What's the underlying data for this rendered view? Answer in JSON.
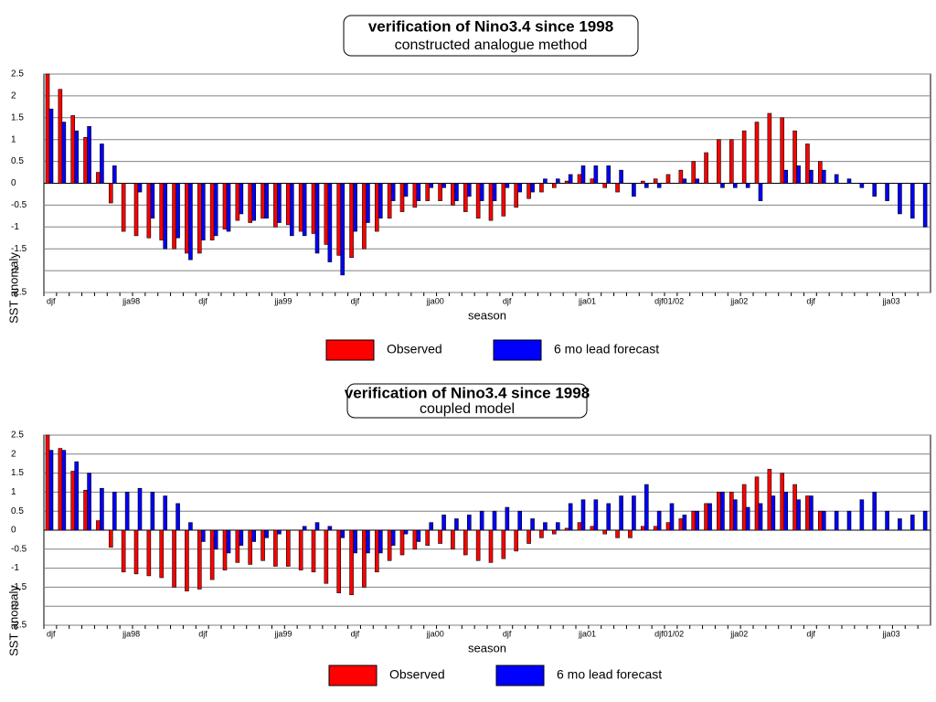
{
  "chart_data": [
    {
      "type": "bar",
      "title": "verification of Nino3.4 since 1998",
      "subtitle": "constructed analogue method",
      "x_label": "season",
      "y_label": "SST anomaly",
      "categories": [
        "djf",
        null,
        null,
        null,
        null,
        null,
        "jja98",
        null,
        null,
        null,
        null,
        null,
        "djf",
        null,
        null,
        null,
        null,
        null,
        "jja99",
        null,
        null,
        null,
        null,
        null,
        "djf",
        null,
        null,
        null,
        null,
        null,
        "jja00",
        null,
        null,
        null,
        null,
        null,
        "djf",
        null,
        null,
        null,
        null,
        null,
        "jja01",
        null,
        null,
        null,
        null,
        null,
        "djf01/02",
        null,
        null,
        null,
        null,
        null,
        "jja02",
        null,
        null,
        null,
        null,
        null,
        "djf",
        null,
        null,
        null,
        null,
        null,
        "jja03",
        null,
        null,
        null
      ],
      "series": [
        {
          "name": "Observed",
          "color": "#ff0000",
          "values": [
            2.5,
            2.15,
            1.55,
            1.05,
            0.25,
            -0.45,
            -1.1,
            -1.2,
            -1.25,
            -1.3,
            -1.5,
            -1.6,
            -1.6,
            -1.3,
            -1.05,
            -0.85,
            -0.9,
            -0.8,
            -1.0,
            -0.95,
            -1.1,
            -1.15,
            -1.4,
            -1.65,
            -1.7,
            -1.5,
            -1.1,
            -0.8,
            -0.65,
            -0.55,
            -0.4,
            -0.4,
            -0.5,
            -0.65,
            -0.8,
            -0.85,
            -0.75,
            -0.55,
            -0.35,
            -0.2,
            -0.1,
            0.05,
            0.2,
            0.1,
            -0.1,
            -0.2,
            0,
            0.05,
            0.1,
            0.2,
            0.3,
            0.5,
            0.7,
            1.0,
            1.0,
            1.2,
            1.4,
            1.6,
            1.5,
            1.2,
            0.9,
            0.5,
            null,
            null,
            null,
            null,
            null,
            null,
            null,
            null
          ]
        },
        {
          "name": "6 mo lead forecast",
          "color": "#0000ff",
          "values": [
            1.7,
            1.4,
            1.2,
            1.3,
            0.9,
            0.4,
            0,
            -0.2,
            -0.8,
            -1.5,
            -1.25,
            -1.75,
            -1.3,
            -1.2,
            -1.1,
            -0.7,
            -0.85,
            -0.8,
            -0.9,
            -1.2,
            -1.2,
            -1.6,
            -1.8,
            -2.1,
            -1.1,
            -0.9,
            -0.8,
            -0.4,
            -0.3,
            -0.4,
            -0.1,
            -0.1,
            -0.4,
            -0.3,
            -0.4,
            -0.4,
            -0.1,
            -0.2,
            -0.2,
            0.1,
            0.1,
            0.2,
            0.4,
            0.4,
            0.4,
            0.3,
            -0.3,
            -0.1,
            -0.1,
            0,
            0.1,
            0.1,
            0,
            -0.1,
            -0.1,
            -0.1,
            -0.4,
            0,
            0.3,
            0.4,
            0.3,
            0.3,
            0.2,
            0.1,
            -0.1,
            -0.3,
            -0.4,
            -0.7,
            -0.8,
            -1.0
          ]
        }
      ],
      "ylim": [
        -2.5,
        2.5
      ],
      "yticks": [
        2.5,
        2,
        1.5,
        1,
        0.5,
        0,
        -0.5,
        -1,
        -1.5,
        -2,
        -2.5
      ],
      "grid": true
    },
    {
      "type": "bar",
      "title": "verification of Nino3.4 since 1998",
      "subtitle": "coupled model",
      "x_label": "season",
      "y_label": "SST anomaly",
      "categories": [
        "djf",
        null,
        null,
        null,
        null,
        null,
        "jja98",
        null,
        null,
        null,
        null,
        null,
        "djf",
        null,
        null,
        null,
        null,
        null,
        "jja99",
        null,
        null,
        null,
        null,
        null,
        "djf",
        null,
        null,
        null,
        null,
        null,
        "jja00",
        null,
        null,
        null,
        null,
        null,
        "djf",
        null,
        null,
        null,
        null,
        null,
        "jja01",
        null,
        null,
        null,
        null,
        null,
        "djf01/02",
        null,
        null,
        null,
        null,
        null,
        "jja02",
        null,
        null,
        null,
        null,
        null,
        "djf",
        null,
        null,
        null,
        null,
        null,
        "jja03",
        null,
        null,
        null
      ],
      "series": [
        {
          "name": "Observed",
          "color": "#ff0000",
          "values": [
            2.5,
            2.15,
            1.55,
            1.05,
            0.25,
            -0.45,
            -1.1,
            -1.15,
            -1.2,
            -1.25,
            -1.5,
            -1.6,
            -1.55,
            -1.3,
            -1.05,
            -0.85,
            -0.9,
            -0.8,
            -0.95,
            -0.95,
            -1.05,
            -1.1,
            -1.4,
            -1.65,
            -1.7,
            -1.5,
            -1.1,
            -0.8,
            -0.65,
            -0.5,
            -0.4,
            -0.35,
            -0.5,
            -0.65,
            -0.8,
            -0.85,
            -0.75,
            -0.55,
            -0.35,
            -0.2,
            -0.1,
            0.05,
            0.2,
            0.1,
            -0.1,
            -0.2,
            -0.2,
            0.1,
            0.1,
            0.2,
            0.3,
            0.5,
            0.7,
            1.0,
            1.0,
            1.2,
            1.4,
            1.6,
            1.5,
            1.2,
            0.9,
            0.5,
            null,
            null,
            null,
            null,
            null,
            null,
            null,
            null
          ]
        },
        {
          "name": "6 mo lead forecast",
          "color": "#0000ff",
          "values": [
            2.1,
            2.1,
            1.8,
            1.5,
            1.1,
            1.0,
            1.0,
            1.1,
            1.0,
            0.9,
            0.7,
            0.2,
            -0.3,
            -0.5,
            -0.6,
            -0.4,
            -0.3,
            -0.2,
            -0.1,
            0,
            0.1,
            0.2,
            0.1,
            -0.2,
            -0.6,
            -0.6,
            -0.6,
            -0.4,
            -0.1,
            -0.3,
            0.2,
            0.4,
            0.3,
            0.4,
            0.5,
            0.5,
            0.6,
            0.5,
            0.3,
            0.2,
            0.2,
            0.7,
            0.8,
            0.8,
            0.7,
            0.9,
            0.9,
            1.2,
            0.5,
            0.7,
            0.4,
            0.5,
            0.7,
            1.0,
            0.8,
            0.6,
            0.7,
            0.9,
            1.0,
            0.8,
            0.9,
            0.5,
            0.5,
            0.5,
            0.8,
            1.0,
            0.5,
            0.3,
            0.4,
            0.5
          ]
        }
      ],
      "ylim": [
        -2.5,
        2.5
      ],
      "yticks": [
        2.5,
        2,
        1.5,
        1,
        0.5,
        0,
        -0.5,
        -1,
        -1.5,
        -2,
        -2.5
      ],
      "grid": true
    }
  ]
}
